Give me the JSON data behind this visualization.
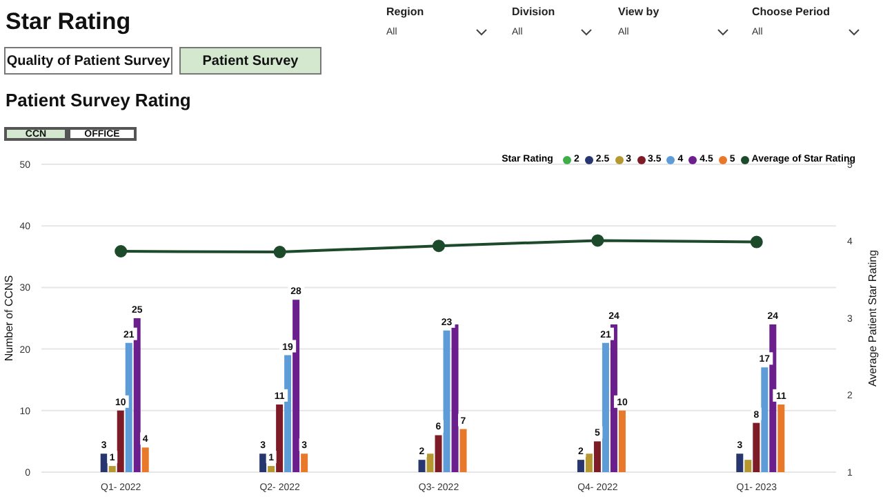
{
  "chart_data": {
    "type": "bar",
    "title": "Star Rating",
    "subtitle": "Patient Survey Rating",
    "xlabel": null,
    "ylabel": "Number of CCNS",
    "y2label": "Average Patient Star Rating",
    "legend_title": "Star Rating",
    "legend": "top right",
    "categories": [
      "Q1- 2022",
      "Q2- 2022",
      "Q3- 2022",
      "Q4- 2022",
      "Q1- 2023"
    ],
    "series": [
      {
        "name": "2",
        "color": "#3fae49",
        "values": [
          null,
          null,
          null,
          null,
          null
        ]
      },
      {
        "name": "2.5",
        "color": "#27366e",
        "values": [
          3,
          3,
          2,
          2,
          3
        ],
        "value_labels": [
          "3",
          "3",
          "2",
          "2",
          "3"
        ]
      },
      {
        "name": "3",
        "color": "#b5982f",
        "values": [
          1,
          1,
          3,
          3,
          2
        ],
        "value_labels": [
          "1",
          "1",
          null,
          null,
          null
        ]
      },
      {
        "name": "3.5",
        "color": "#7d1c27",
        "values": [
          10,
          11,
          6,
          5,
          8
        ],
        "value_labels": [
          "10",
          "11",
          "6",
          "5",
          "8"
        ]
      },
      {
        "name": "4",
        "color": "#5d9cd6",
        "values": [
          21,
          19,
          23,
          21,
          17
        ],
        "value_labels": [
          "21",
          "19",
          "23",
          "21",
          "17"
        ]
      },
      {
        "name": "4.5",
        "color": "#6a1f8c",
        "values": [
          25,
          28,
          24,
          24,
          24
        ],
        "value_labels": [
          "25",
          "28",
          null,
          "24",
          "24"
        ]
      },
      {
        "name": "5",
        "color": "#e8782a",
        "values": [
          4,
          3,
          7,
          10,
          11
        ],
        "value_labels": [
          "4",
          "3",
          "7",
          "10",
          "11"
        ]
      },
      {
        "name": "Average of Star Rating",
        "type": "line",
        "axis": "y2",
        "color": "#1d4a2a",
        "values": [
          3.87,
          3.86,
          3.94,
          4.01,
          3.99
        ]
      }
    ],
    "marker": "circle",
    "line_style": "solid",
    "grid": "y",
    "ylim": [
      0,
      50
    ],
    "yticks": [
      0,
      10,
      20,
      30,
      40,
      50
    ],
    "y2lim": [
      1,
      5
    ],
    "y2ticks": [
      1,
      2,
      3,
      4,
      5
    ],
    "annotations": [
      "Quality of Patient Survey",
      "Patient Survey",
      "CCN",
      "OFFICE",
      "Region",
      "All",
      "Division",
      "All",
      "View by",
      "All",
      "Choose Period",
      "All"
    ]
  }
}
